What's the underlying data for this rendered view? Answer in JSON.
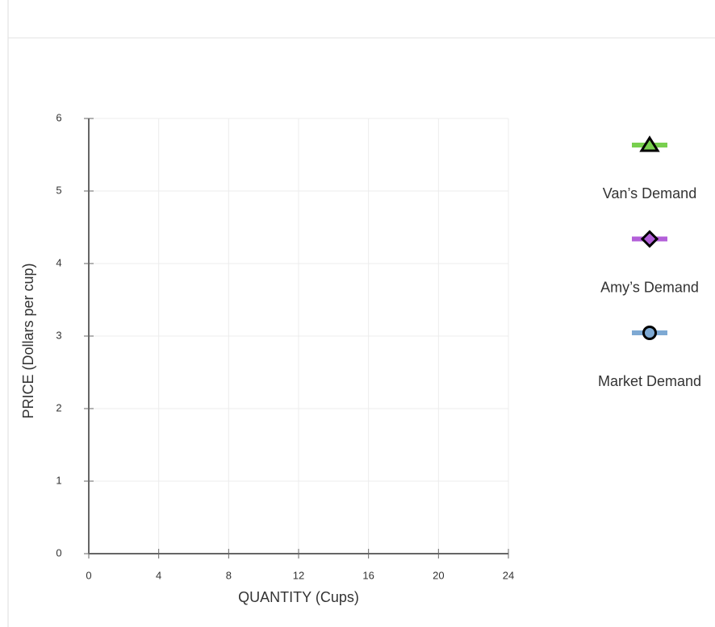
{
  "chart_data": {
    "type": "line",
    "xlabel": "QUANTITY (Cups)",
    "ylabel": "PRICE (Dollars per cup)",
    "xlim": [
      0,
      24
    ],
    "xticks": [
      0,
      4,
      8,
      12,
      16,
      20,
      24
    ],
    "ylim": [
      0,
      6
    ],
    "yticks": [
      0,
      1,
      2,
      3,
      4,
      5,
      6
    ],
    "grid": true,
    "legend": "right",
    "series": [
      {
        "name": "Van’s Demand",
        "color": "#79d04f",
        "marker": "triangle",
        "values": []
      },
      {
        "name": "Amy’s Demand",
        "color": "#b35fd9",
        "marker": "diamond",
        "values": []
      },
      {
        "name": "Market Demand",
        "color": "#7ea9d3",
        "marker": "circle",
        "values": []
      }
    ]
  }
}
